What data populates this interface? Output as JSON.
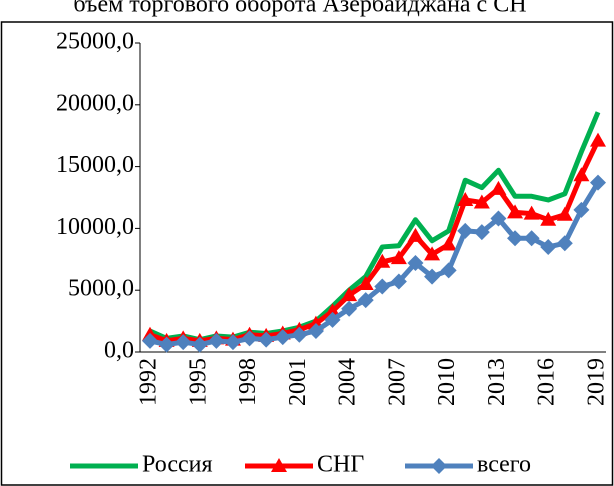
{
  "chart_data": {
    "type": "line",
    "title": "бъем торгового оборота Азербайджана с СН",
    "categories": [
      "1992",
      null,
      null,
      "1995",
      null,
      null,
      "1998",
      null,
      null,
      "2001",
      null,
      null,
      "2004",
      null,
      null,
      "2007",
      null,
      null,
      "2010",
      null,
      null,
      "2013",
      null,
      null,
      "2016",
      null,
      null,
      "2019"
    ],
    "series": [
      {
        "name": "Россия",
        "color": "#00b050",
        "marker": "none",
        "values": [
          1700,
          1100,
          1300,
          1000,
          1300,
          1200,
          1600,
          1500,
          1700,
          2000,
          2500,
          3700,
          5000,
          6100,
          8500,
          8600,
          10700,
          9000,
          9800,
          13900,
          13300,
          14700,
          12600,
          12600,
          12300,
          12800,
          16200,
          19400
        ]
      },
      {
        "name": "СНГ",
        "color": "#ff0000",
        "marker": "triangle",
        "values": [
          1400,
          900,
          1100,
          900,
          1100,
          1000,
          1400,
          1300,
          1500,
          1800,
          2300,
          3300,
          4600,
          5500,
          7300,
          7600,
          9400,
          7900,
          8700,
          12300,
          12100,
          13200,
          11300,
          11200,
          10700,
          11100,
          14300,
          17100
        ]
      },
      {
        "name": "всего",
        "color": "#4f81bd",
        "marker": "diamond",
        "values": [
          900,
          600,
          800,
          600,
          900,
          800,
          1100,
          1000,
          1200,
          1400,
          1700,
          2600,
          3500,
          4200,
          5300,
          5700,
          7200,
          6100,
          6600,
          9800,
          9700,
          10800,
          9200,
          9200,
          8500,
          8800,
          11500,
          13700
        ]
      }
    ],
    "ylim": [
      0,
      25000
    ],
    "yticks": [
      {
        "value": 0,
        "label": "0,0"
      },
      {
        "value": 5000,
        "label": "5000,0"
      },
      {
        "value": 10000,
        "label": "10000,0"
      },
      {
        "value": 15000,
        "label": "15000,0"
      },
      {
        "value": 20000,
        "label": "20000,0"
      },
      {
        "value": 25000,
        "label": "25000,0"
      }
    ],
    "legend": "bottom"
  }
}
